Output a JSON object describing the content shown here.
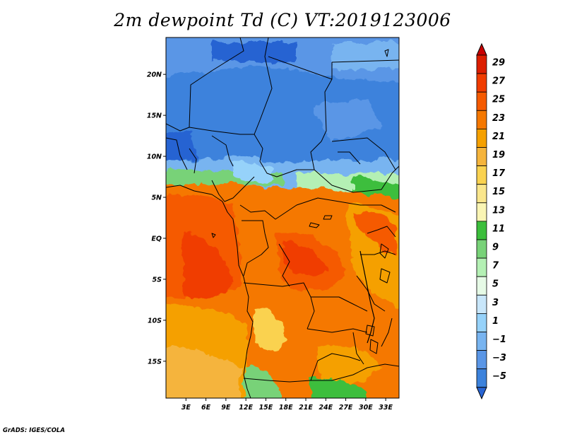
{
  "title": "2m dewpoint Td (C) VT:2019123006",
  "credit": "GrADS: IGES/COLA",
  "map": {
    "variable": "2m dewpoint",
    "units": "C",
    "valid_time": "2019123006",
    "lat_range": [
      -19.5,
      24.5
    ],
    "lon_range": [
      0,
      35
    ],
    "lat_ticks": [
      "20N",
      "15N",
      "10N",
      "5N",
      "EQ",
      "5S",
      "10S",
      "15S"
    ],
    "lat_tick_values": [
      20,
      15,
      10,
      5,
      0,
      -5,
      -10,
      -15
    ],
    "lon_ticks": [
      "3E",
      "6E",
      "9E",
      "12E",
      "15E",
      "18E",
      "21E",
      "24E",
      "27E",
      "30E",
      "33E"
    ],
    "lon_tick_values": [
      3,
      6,
      9,
      12,
      15,
      18,
      21,
      24,
      27,
      30,
      33
    ]
  },
  "colorbar": {
    "labels": [
      "29",
      "27",
      "25",
      "23",
      "21",
      "19",
      "17",
      "15",
      "13",
      "11",
      "9",
      "7",
      "5",
      "3",
      "1",
      "−1",
      "−3",
      "−5"
    ],
    "colors": [
      "#c80000",
      "#dc1e00",
      "#f03c00",
      "#f55a00",
      "#f57800",
      "#f5a000",
      "#f5b43c",
      "#fad250",
      "#fae68c",
      "#faf5b4",
      "#3cbe3c",
      "#78d278",
      "#b4f0b4",
      "#e6fae6",
      "#c8e6fa",
      "#96d2fa",
      "#78b4f0",
      "#5a96e6",
      "#3c82dc",
      "#2864d2"
    ]
  }
}
